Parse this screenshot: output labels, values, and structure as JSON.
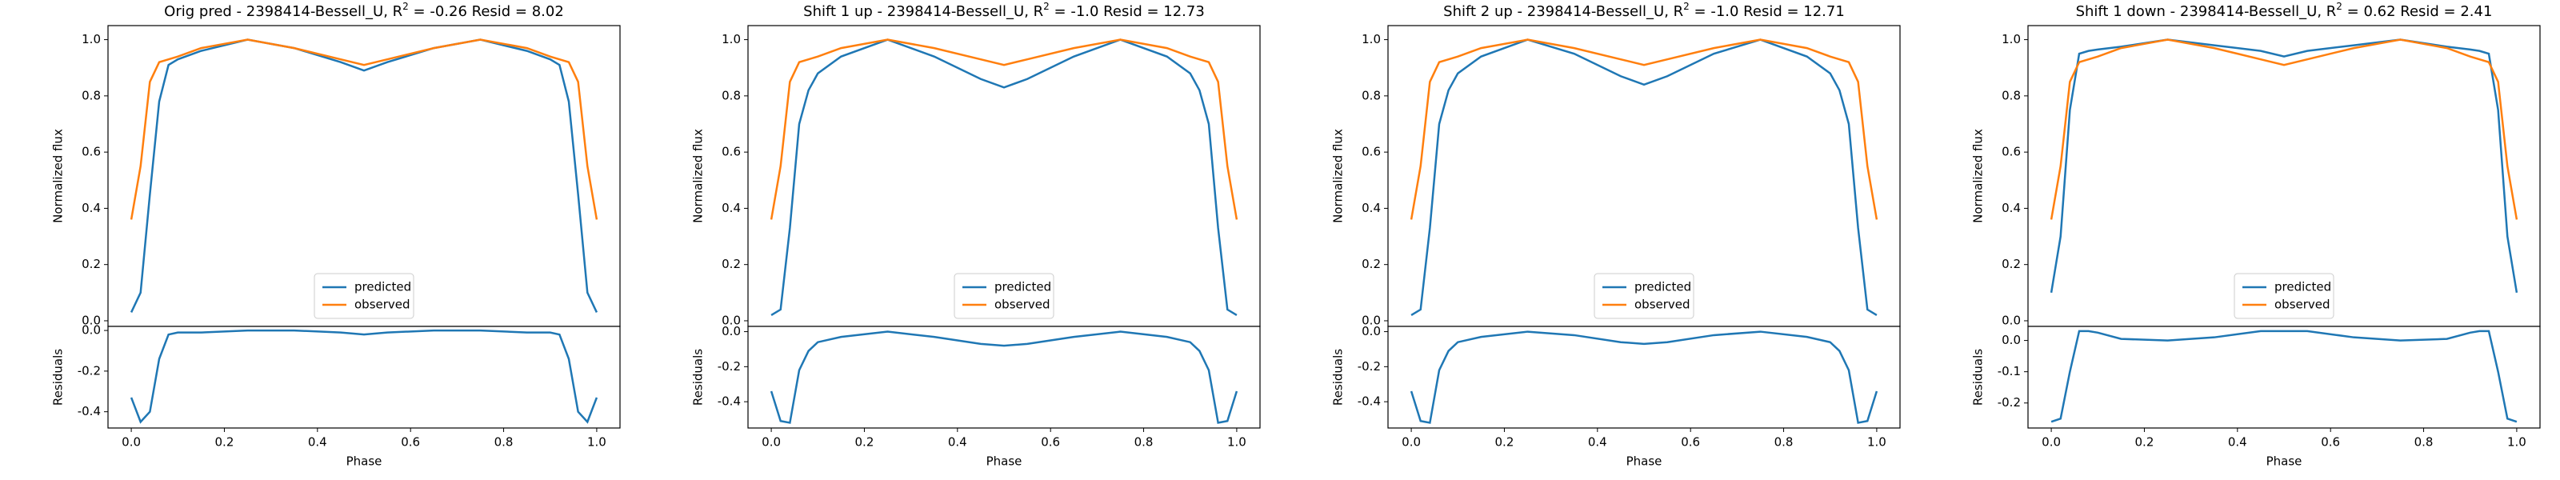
{
  "chart_data": [
    {
      "type": "line",
      "title": [
        "Orig pred - 2398414-Bessell_U, R",
        "2",
        " = -0.26 Resid = 8.02"
      ],
      "ylabel": "Normalized flux",
      "x": [
        0,
        0.02,
        0.04,
        0.06,
        0.08,
        0.1,
        0.15,
        0.25,
        0.35,
        0.45,
        0.5,
        0.55,
        0.65,
        0.75,
        0.85,
        0.9,
        0.92,
        0.94,
        0.96,
        0.98,
        1.0
      ],
      "series": [
        {
          "name": "predicted",
          "color": "#1f77b4",
          "values": [
            0.03,
            0.1,
            0.45,
            0.78,
            0.91,
            0.93,
            0.96,
            1.0,
            0.97,
            0.92,
            0.89,
            0.92,
            0.97,
            1.0,
            0.96,
            0.93,
            0.91,
            0.78,
            0.45,
            0.1,
            0.03
          ]
        },
        {
          "name": "observed",
          "color": "#ff7f0e",
          "values": [
            0.36,
            0.55,
            0.85,
            0.92,
            0.93,
            0.94,
            0.97,
            1.0,
            0.97,
            0.93,
            0.91,
            0.93,
            0.97,
            1.0,
            0.97,
            0.94,
            0.93,
            0.92,
            0.85,
            0.55,
            0.36
          ]
        }
      ],
      "xlim": [
        -0.05,
        1.05
      ],
      "ylim": [
        -0.02,
        1.05
      ],
      "yticks": [
        {
          "value": 0,
          "label": "0.0"
        },
        0.2,
        0.4,
        0.6,
        0.8,
        {
          "value": 1,
          "label": "1.0"
        }
      ],
      "legend": "lower center"
    },
    {
      "type": "line",
      "xlabel": "Phase",
      "ylabel": "Residuals",
      "x": [
        0,
        0.02,
        0.04,
        0.06,
        0.08,
        0.1,
        0.15,
        0.25,
        0.35,
        0.45,
        0.5,
        0.55,
        0.65,
        0.75,
        0.85,
        0.9,
        0.92,
        0.94,
        0.96,
        0.98,
        1.0
      ],
      "series": [
        {
          "color": "#1f77b4",
          "values": [
            -0.33,
            -0.45,
            -0.4,
            -0.14,
            -0.02,
            -0.01,
            -0.01,
            0,
            0,
            -0.01,
            -0.02,
            -0.01,
            0,
            0,
            -0.01,
            -0.01,
            -0.02,
            -0.14,
            -0.4,
            -0.45,
            -0.33
          ]
        }
      ],
      "xlim": [
        -0.05,
        1.05
      ],
      "ylim": [
        -0.48,
        0.02
      ],
      "yticks": [
        {
          "value": 0,
          "label": "0.0"
        },
        -0.2,
        -0.4
      ],
      "xticks": [
        {
          "value": 0,
          "label": "0.0"
        },
        0.2,
        0.4,
        0.6,
        0.8,
        {
          "value": 1,
          "label": "1.0"
        }
      ]
    },
    {
      "type": "line",
      "title": [
        "Shift 1 up - 2398414-Bessell_U, R",
        "2",
        " = -1.0 Resid = 12.73"
      ],
      "ylabel": "Normalized flux",
      "x": [
        0,
        0.02,
        0.04,
        0.06,
        0.08,
        0.1,
        0.15,
        0.25,
        0.35,
        0.45,
        0.5,
        0.55,
        0.65,
        0.75,
        0.85,
        0.9,
        0.92,
        0.94,
        0.96,
        0.98,
        1.0
      ],
      "series": [
        {
          "name": "predicted",
          "color": "#1f77b4",
          "values": [
            0.02,
            0.04,
            0.33,
            0.7,
            0.82,
            0.88,
            0.94,
            1.0,
            0.94,
            0.86,
            0.83,
            0.86,
            0.94,
            1.0,
            0.94,
            0.88,
            0.82,
            0.7,
            0.33,
            0.04,
            0.02
          ]
        },
        {
          "name": "observed",
          "color": "#ff7f0e",
          "values": [
            0.36,
            0.55,
            0.85,
            0.92,
            0.93,
            0.94,
            0.97,
            1.0,
            0.97,
            0.93,
            0.91,
            0.93,
            0.97,
            1.0,
            0.97,
            0.94,
            0.93,
            0.92,
            0.85,
            0.55,
            0.36
          ]
        }
      ],
      "xlim": [
        -0.05,
        1.05
      ],
      "ylim": [
        -0.02,
        1.05
      ],
      "yticks": [
        {
          "value": 0,
          "label": "0.0"
        },
        0.2,
        0.4,
        0.6,
        0.8,
        {
          "value": 1,
          "label": "1.0"
        }
      ],
      "legend": "lower center"
    },
    {
      "type": "line",
      "xlabel": "Phase",
      "ylabel": "Residuals",
      "x": [
        0,
        0.02,
        0.04,
        0.06,
        0.08,
        0.1,
        0.15,
        0.25,
        0.35,
        0.45,
        0.5,
        0.55,
        0.65,
        0.75,
        0.85,
        0.9,
        0.92,
        0.94,
        0.96,
        0.98,
        1.0
      ],
      "series": [
        {
          "color": "#1f77b4",
          "values": [
            -0.34,
            -0.51,
            -0.52,
            -0.22,
            -0.11,
            -0.06,
            -0.03,
            0,
            -0.03,
            -0.07,
            -0.08,
            -0.07,
            -0.03,
            0,
            -0.03,
            -0.06,
            -0.11,
            -0.22,
            -0.52,
            -0.51,
            -0.34
          ]
        }
      ],
      "xlim": [
        -0.05,
        1.05
      ],
      "ylim": [
        -0.55,
        0.03
      ],
      "yticks": [
        {
          "value": 0,
          "label": "0.0"
        },
        -0.2,
        -0.4
      ],
      "xticks": [
        {
          "value": 0,
          "label": "0.0"
        },
        0.2,
        0.4,
        0.6,
        0.8,
        {
          "value": 1,
          "label": "1.0"
        }
      ]
    },
    {
      "type": "line",
      "title": [
        "Shift 2 up - 2398414-Bessell_U, R",
        "2",
        " = -1.0 Resid = 12.71"
      ],
      "ylabel": "Normalized flux",
      "x": [
        0,
        0.02,
        0.04,
        0.06,
        0.08,
        0.1,
        0.15,
        0.25,
        0.35,
        0.45,
        0.5,
        0.55,
        0.65,
        0.75,
        0.85,
        0.9,
        0.92,
        0.94,
        0.96,
        0.98,
        1.0
      ],
      "series": [
        {
          "name": "predicted",
          "color": "#1f77b4",
          "values": [
            0.02,
            0.04,
            0.33,
            0.7,
            0.82,
            0.88,
            0.94,
            1.0,
            0.95,
            0.87,
            0.84,
            0.87,
            0.95,
            1.0,
            0.94,
            0.88,
            0.82,
            0.7,
            0.33,
            0.04,
            0.02
          ]
        },
        {
          "name": "observed",
          "color": "#ff7f0e",
          "values": [
            0.36,
            0.55,
            0.85,
            0.92,
            0.93,
            0.94,
            0.97,
            1.0,
            0.97,
            0.93,
            0.91,
            0.93,
            0.97,
            1.0,
            0.97,
            0.94,
            0.93,
            0.92,
            0.85,
            0.55,
            0.36
          ]
        }
      ],
      "xlim": [
        -0.05,
        1.05
      ],
      "ylim": [
        -0.02,
        1.05
      ],
      "yticks": [
        {
          "value": 0,
          "label": "0.0"
        },
        0.2,
        0.4,
        0.6,
        0.8,
        {
          "value": 1,
          "label": "1.0"
        }
      ],
      "legend": "lower center"
    },
    {
      "type": "line",
      "xlabel": "Phase",
      "ylabel": "Residuals",
      "x": [
        0,
        0.02,
        0.04,
        0.06,
        0.08,
        0.1,
        0.15,
        0.25,
        0.35,
        0.45,
        0.5,
        0.55,
        0.65,
        0.75,
        0.85,
        0.9,
        0.92,
        0.94,
        0.96,
        0.98,
        1.0
      ],
      "series": [
        {
          "color": "#1f77b4",
          "values": [
            -0.34,
            -0.51,
            -0.52,
            -0.22,
            -0.11,
            -0.06,
            -0.03,
            0,
            -0.02,
            -0.06,
            -0.07,
            -0.06,
            -0.02,
            0,
            -0.03,
            -0.06,
            -0.11,
            -0.22,
            -0.52,
            -0.51,
            -0.34
          ]
        }
      ],
      "xlim": [
        -0.05,
        1.05
      ],
      "ylim": [
        -0.55,
        0.03
      ],
      "yticks": [
        {
          "value": 0,
          "label": "0.0"
        },
        -0.2,
        -0.4
      ],
      "xticks": [
        {
          "value": 0,
          "label": "0.0"
        },
        0.2,
        0.4,
        0.6,
        0.8,
        {
          "value": 1,
          "label": "1.0"
        }
      ]
    },
    {
      "type": "line",
      "title": [
        "Shift 1 down - 2398414-Bessell_U, R",
        "2",
        " = 0.62 Resid = 2.41"
      ],
      "ylabel": "Normalized flux",
      "x": [
        0,
        0.02,
        0.04,
        0.06,
        0.08,
        0.1,
        0.15,
        0.25,
        0.35,
        0.45,
        0.5,
        0.55,
        0.65,
        0.75,
        0.85,
        0.9,
        0.92,
        0.94,
        0.96,
        0.98,
        1.0
      ],
      "series": [
        {
          "name": "predicted",
          "color": "#1f77b4",
          "values": [
            0.1,
            0.3,
            0.75,
            0.95,
            0.96,
            0.965,
            0.975,
            1.0,
            0.98,
            0.96,
            0.94,
            0.96,
            0.98,
            1.0,
            0.975,
            0.965,
            0.96,
            0.95,
            0.75,
            0.3,
            0.1
          ]
        },
        {
          "name": "observed",
          "color": "#ff7f0e",
          "values": [
            0.36,
            0.55,
            0.85,
            0.92,
            0.93,
            0.94,
            0.97,
            1.0,
            0.97,
            0.93,
            0.91,
            0.93,
            0.97,
            1.0,
            0.97,
            0.94,
            0.93,
            0.92,
            0.85,
            0.55,
            0.36
          ]
        }
      ],
      "xlim": [
        -0.05,
        1.05
      ],
      "ylim": [
        -0.02,
        1.05
      ],
      "yticks": [
        {
          "value": 0,
          "label": "0.0"
        },
        0.2,
        0.4,
        0.6,
        0.8,
        {
          "value": 1,
          "label": "1.0"
        }
      ],
      "legend": "lower center"
    },
    {
      "type": "line",
      "xlabel": "Phase",
      "ylabel": "Residuals",
      "x": [
        0,
        0.02,
        0.04,
        0.06,
        0.08,
        0.1,
        0.15,
        0.25,
        0.35,
        0.45,
        0.5,
        0.55,
        0.65,
        0.75,
        0.85,
        0.9,
        0.92,
        0.94,
        0.96,
        0.98,
        1.0
      ],
      "series": [
        {
          "color": "#1f77b4",
          "values": [
            -0.26,
            -0.25,
            -0.1,
            0.03,
            0.03,
            0.025,
            0.005,
            0,
            0.01,
            0.03,
            0.03,
            0.03,
            0.01,
            0,
            0.005,
            0.025,
            0.03,
            0.03,
            -0.1,
            -0.25,
            -0.26
          ]
        }
      ],
      "xlim": [
        -0.05,
        1.05
      ],
      "ylim": [
        -0.28,
        0.045
      ],
      "yticks": [
        {
          "value": 0,
          "label": "0.0"
        },
        -0.1,
        -0.2
      ],
      "xticks": [
        {
          "value": 0,
          "label": "0.0"
        },
        0.2,
        0.4,
        0.6,
        0.8,
        {
          "value": 1,
          "label": "1.0"
        }
      ]
    }
  ]
}
